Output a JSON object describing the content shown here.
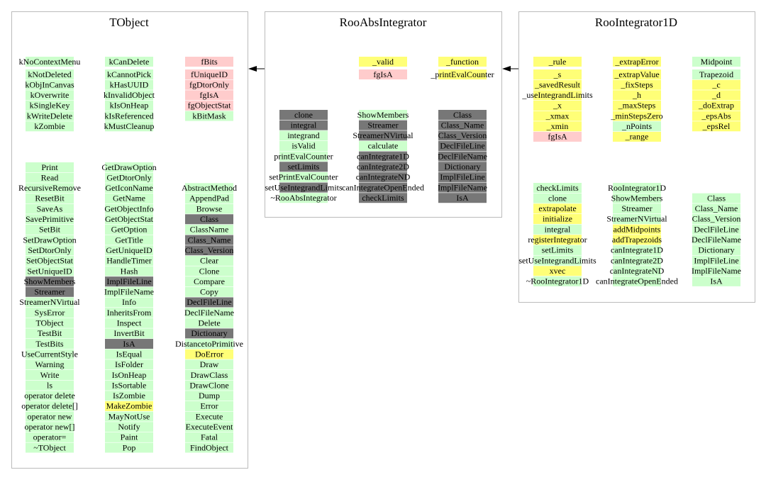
{
  "classes": [
    {
      "title": "TObject",
      "members": [
        [
          {
            "label": "kNoContextMenu",
            "color": "#ccffcc"
          },
          {
            "label": "kNotDeleted",
            "color": "#ccffcc"
          },
          {
            "label": "kObjInCanvas",
            "color": "#ccffcc"
          },
          {
            "label": "kOverwrite",
            "color": "#ccffcc"
          },
          {
            "label": "kSingleKey",
            "color": "#ccffcc"
          },
          {
            "label": "kWriteDelete",
            "color": "#ccffcc"
          },
          {
            "label": "kZombie",
            "color": "#ccffcc"
          }
        ],
        [
          {
            "label": "kCanDelete",
            "color": "#ccffcc"
          },
          {
            "label": "kCannotPick",
            "color": "#ccffcc"
          },
          {
            "label": "kHasUUID",
            "color": "#ccffcc"
          },
          {
            "label": "kInvalidObject",
            "color": "#ccffcc"
          },
          {
            "label": "kIsOnHeap",
            "color": "#ccffcc"
          },
          {
            "label": "kIsReferenced",
            "color": "#ccffcc"
          },
          {
            "label": "kMustCleanup",
            "color": "#ccffcc"
          }
        ],
        [
          {
            "label": "fBits",
            "color": "#ffcccc"
          },
          {
            "label": "fUniqueID",
            "color": "#ffcccc"
          },
          {
            "label": "fgDtorOnly",
            "color": "#ffcccc"
          },
          {
            "label": "fgIsA",
            "color": "#ffcccc"
          },
          {
            "label": "fgObjectStat",
            "color": "#ffcccc"
          },
          {
            "label": "kBitMask",
            "color": "#ccffcc"
          }
        ]
      ],
      "methods": [
        [
          {
            "label": "Print",
            "color": "#ccffcc"
          },
          {
            "label": "Read",
            "color": "#ccffcc"
          },
          {
            "label": "RecursiveRemove",
            "color": "#ccffcc"
          },
          {
            "label": "ResetBit",
            "color": "#ccffcc"
          },
          {
            "label": "SaveAs",
            "color": "#ccffcc"
          },
          {
            "label": "SavePrimitive",
            "color": "#ccffcc"
          },
          {
            "label": "SetBit",
            "color": "#ccffcc"
          },
          {
            "label": "SetDrawOption",
            "color": "#ccffcc"
          },
          {
            "label": "SetDtorOnly",
            "color": "#ccffcc"
          },
          {
            "label": "SetObjectStat",
            "color": "#ccffcc"
          },
          {
            "label": "SetUniqueID",
            "color": "#ccffcc"
          },
          {
            "label": "ShowMembers",
            "color": "#777777"
          },
          {
            "label": "Streamer",
            "color": "#777777"
          },
          {
            "label": "StreamerNVirtual",
            "color": "#ccffcc"
          },
          {
            "label": "SysError",
            "color": "#ccffcc"
          },
          {
            "label": "TObject",
            "color": "#ccffcc"
          },
          {
            "label": "TestBit",
            "color": "#ccffcc"
          },
          {
            "label": "TestBits",
            "color": "#ccffcc"
          },
          {
            "label": "UseCurrentStyle",
            "color": "#ccffcc"
          },
          {
            "label": "Warning",
            "color": "#ccffcc"
          },
          {
            "label": "Write",
            "color": "#ccffcc"
          },
          {
            "label": "ls",
            "color": "#ccffcc"
          },
          {
            "label": "operator delete",
            "color": "#ccffcc"
          },
          {
            "label": "operator delete[]",
            "color": "#ccffcc"
          },
          {
            "label": "operator new",
            "color": "#ccffcc"
          },
          {
            "label": "operator new[]",
            "color": "#ccffcc"
          },
          {
            "label": "operator=",
            "color": "#ccffcc"
          },
          {
            "label": "~TObject",
            "color": "#ccffcc"
          }
        ],
        [
          {
            "label": "GetDrawOption",
            "color": "#ccffcc"
          },
          {
            "label": "GetDtorOnly",
            "color": "#ccffcc"
          },
          {
            "label": "GetIconName",
            "color": "#ccffcc"
          },
          {
            "label": "GetName",
            "color": "#ccffcc"
          },
          {
            "label": "GetObjectInfo",
            "color": "#ccffcc"
          },
          {
            "label": "GetObjectStat",
            "color": "#ccffcc"
          },
          {
            "label": "GetOption",
            "color": "#ccffcc"
          },
          {
            "label": "GetTitle",
            "color": "#ccffcc"
          },
          {
            "label": "GetUniqueID",
            "color": "#ccffcc"
          },
          {
            "label": "HandleTimer",
            "color": "#ccffcc"
          },
          {
            "label": "Hash",
            "color": "#ccffcc"
          },
          {
            "label": "ImplFileLine",
            "color": "#777777"
          },
          {
            "label": "ImplFileName",
            "color": "#ccffcc"
          },
          {
            "label": "Info",
            "color": "#ccffcc"
          },
          {
            "label": "InheritsFrom",
            "color": "#ccffcc"
          },
          {
            "label": "Inspect",
            "color": "#ccffcc"
          },
          {
            "label": "InvertBit",
            "color": "#ccffcc"
          },
          {
            "label": "IsA",
            "color": "#777777"
          },
          {
            "label": "IsEqual",
            "color": "#ccffcc"
          },
          {
            "label": "IsFolder",
            "color": "#ccffcc"
          },
          {
            "label": "IsOnHeap",
            "color": "#ccffcc"
          },
          {
            "label": "IsSortable",
            "color": "#ccffcc"
          },
          {
            "label": "IsZombie",
            "color": "#ccffcc"
          },
          {
            "label": "MakeZombie",
            "color": "#ffff77"
          },
          {
            "label": "MayNotUse",
            "color": "#ccffcc"
          },
          {
            "label": "Notify",
            "color": "#ccffcc"
          },
          {
            "label": "Paint",
            "color": "#ccffcc"
          },
          {
            "label": "Pop",
            "color": "#ccffcc"
          }
        ],
        [
          {
            "label": "AbstractMethod",
            "color": "#ccffcc"
          },
          {
            "label": "AppendPad",
            "color": "#ccffcc"
          },
          {
            "label": "Browse",
            "color": "#ccffcc"
          },
          {
            "label": "Class",
            "color": "#777777"
          },
          {
            "label": "ClassName",
            "color": "#ccffcc"
          },
          {
            "label": "Class_Name",
            "color": "#777777"
          },
          {
            "label": "Class_Version",
            "color": "#777777"
          },
          {
            "label": "Clear",
            "color": "#ccffcc"
          },
          {
            "label": "Clone",
            "color": "#ccffcc"
          },
          {
            "label": "Compare",
            "color": "#ccffcc"
          },
          {
            "label": "Copy",
            "color": "#ccffcc"
          },
          {
            "label": "DeclFileLine",
            "color": "#777777"
          },
          {
            "label": "DeclFileName",
            "color": "#ccffcc"
          },
          {
            "label": "Delete",
            "color": "#ccffcc"
          },
          {
            "label": "Dictionary",
            "color": "#777777"
          },
          {
            "label": "DistancetoPrimitive",
            "color": "#ccffcc"
          },
          {
            "label": "DoError",
            "color": "#ffff77"
          },
          {
            "label": "Draw",
            "color": "#ccffcc"
          },
          {
            "label": "DrawClass",
            "color": "#ccffcc"
          },
          {
            "label": "DrawClone",
            "color": "#ccffcc"
          },
          {
            "label": "Dump",
            "color": "#ccffcc"
          },
          {
            "label": "Error",
            "color": "#ccffcc"
          },
          {
            "label": "Execute",
            "color": "#ccffcc"
          },
          {
            "label": "ExecuteEvent",
            "color": "#ccffcc"
          },
          {
            "label": "Fatal",
            "color": "#ccffcc"
          },
          {
            "label": "FindObject",
            "color": "#ccffcc"
          }
        ]
      ]
    },
    {
      "title": "RooAbsIntegrator",
      "members": [
        [
          {
            "label": "_valid",
            "color": "#ffff77"
          },
          {
            "label": "fgIsA",
            "color": "#ffcccc"
          }
        ],
        [
          {
            "label": "_function",
            "color": "#ffff77"
          },
          {
            "label": "_printEvalCounter",
            "color": "#ffff77"
          }
        ]
      ],
      "methods": [
        [
          {
            "label": "clone",
            "color": "#777777"
          },
          {
            "label": "integral",
            "color": "#777777"
          },
          {
            "label": "integrand",
            "color": "#ccffcc"
          },
          {
            "label": "isValid",
            "color": "#ccffcc"
          },
          {
            "label": "printEvalCounter",
            "color": "#ccffcc"
          },
          {
            "label": "setLimits",
            "color": "#777777"
          },
          {
            "label": "setPrintEvalCounter",
            "color": "#ccffcc"
          },
          {
            "label": "setUseIntegrandLimits",
            "color": "#777777"
          },
          {
            "label": "~RooAbsIntegrator",
            "color": "#ccffcc"
          }
        ],
        [
          {
            "label": "ShowMembers",
            "color": "#ccffcc"
          },
          {
            "label": "Streamer",
            "color": "#777777"
          },
          {
            "label": "StreamerNVirtual",
            "color": "#777777"
          },
          {
            "label": "calculate",
            "color": "#ccffcc"
          },
          {
            "label": "canIntegrate1D",
            "color": "#777777"
          },
          {
            "label": "canIntegrate2D",
            "color": "#777777"
          },
          {
            "label": "canIntegrateND",
            "color": "#777777"
          },
          {
            "label": "canIntegrateOpenEnded",
            "color": "#777777"
          },
          {
            "label": "checkLimits",
            "color": "#777777"
          }
        ],
        [
          {
            "label": "Class",
            "color": "#777777"
          },
          {
            "label": "Class_Name",
            "color": "#777777"
          },
          {
            "label": "Class_Version",
            "color": "#777777"
          },
          {
            "label": "DeclFileLine",
            "color": "#777777"
          },
          {
            "label": "DeclFileName",
            "color": "#777777"
          },
          {
            "label": "Dictionary",
            "color": "#777777"
          },
          {
            "label": "ImplFileLine",
            "color": "#777777"
          },
          {
            "label": "ImplFileName",
            "color": "#777777"
          },
          {
            "label": "IsA",
            "color": "#777777"
          }
        ]
      ]
    },
    {
      "title": "RooIntegrator1D",
      "members": [
        [
          {
            "label": "_rule",
            "color": "#ffff77"
          },
          {
            "label": "_s",
            "color": "#ffff77"
          },
          {
            "label": "_savedResult",
            "color": "#ffff77"
          },
          {
            "label": "_useIntegrandLimits",
            "color": "#ffff77"
          },
          {
            "label": "_x",
            "color": "#ffff77"
          },
          {
            "label": "_xmax",
            "color": "#ffff77"
          },
          {
            "label": "_xmin",
            "color": "#ffff77"
          },
          {
            "label": "fgIsA",
            "color": "#ffcccc"
          }
        ],
        [
          {
            "label": "_extrapError",
            "color": "#ffff77"
          },
          {
            "label": "_extrapValue",
            "color": "#ffff77"
          },
          {
            "label": "_fixSteps",
            "color": "#ffff77"
          },
          {
            "label": "_h",
            "color": "#ffff77"
          },
          {
            "label": "_maxSteps",
            "color": "#ffff77"
          },
          {
            "label": "_minStepsZero",
            "color": "#ffff77"
          },
          {
            "label": "_nPoints",
            "color": "#ccffcc"
          },
          {
            "label": "_range",
            "color": "#ffff77"
          }
        ],
        [
          {
            "label": "Midpoint",
            "color": "#ccffcc"
          },
          {
            "label": "Trapezoid",
            "color": "#ccffcc"
          },
          {
            "label": "_c",
            "color": "#ffff77"
          },
          {
            "label": "_d",
            "color": "#ffff77"
          },
          {
            "label": "_doExtrap",
            "color": "#ffff77"
          },
          {
            "label": "_epsAbs",
            "color": "#ffff77"
          },
          {
            "label": "_epsRel",
            "color": "#ffff77"
          }
        ]
      ],
      "methods": [
        [
          {
            "label": "checkLimits",
            "color": "#ccffcc"
          },
          {
            "label": "clone",
            "color": "#ccffcc"
          },
          {
            "label": "extrapolate",
            "color": "#ffff77"
          },
          {
            "label": "initialize",
            "color": "#ffff77"
          },
          {
            "label": "integral",
            "color": "#ccffcc"
          },
          {
            "label": "registerIntegrator",
            "color": "#ffff77"
          },
          {
            "label": "setLimits",
            "color": "#ccffcc"
          },
          {
            "label": "setUseIntegrandLimits",
            "color": "#ccffcc"
          },
          {
            "label": "xvec",
            "color": "#ffff77"
          },
          {
            "label": "~RooIntegrator1D",
            "color": "#ccffcc"
          }
        ],
        [
          {
            "label": "RooIntegrator1D",
            "color": "#ccffcc"
          },
          {
            "label": "ShowMembers",
            "color": "#ccffcc"
          },
          {
            "label": "Streamer",
            "color": "#ccffcc"
          },
          {
            "label": "StreamerNVirtual",
            "color": "#ccffcc"
          },
          {
            "label": "addMidpoints",
            "color": "#ffff77"
          },
          {
            "label": "addTrapezoids",
            "color": "#ffff77"
          },
          {
            "label": "canIntegrate1D",
            "color": "#ccffcc"
          },
          {
            "label": "canIntegrate2D",
            "color": "#ccffcc"
          },
          {
            "label": "canIntegrateND",
            "color": "#ccffcc"
          },
          {
            "label": "canIntegrateOpenEnded",
            "color": "#ccffcc"
          }
        ],
        [
          {
            "label": "Class",
            "color": "#ccffcc"
          },
          {
            "label": "Class_Name",
            "color": "#ccffcc"
          },
          {
            "label": "Class_Version",
            "color": "#ccffcc"
          },
          {
            "label": "DeclFileLine",
            "color": "#ccffcc"
          },
          {
            "label": "DeclFileName",
            "color": "#ccffcc"
          },
          {
            "label": "Dictionary",
            "color": "#ccffcc"
          },
          {
            "label": "ImplFileLine",
            "color": "#ccffcc"
          },
          {
            "label": "ImplFileName",
            "color": "#ccffcc"
          },
          {
            "label": "IsA",
            "color": "#ccffcc"
          }
        ]
      ]
    }
  ]
}
